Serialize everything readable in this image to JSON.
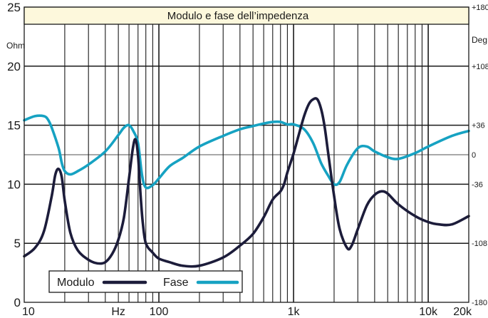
{
  "chart_data": {
    "type": "line",
    "title": "Modulo e fase dell’impedenza",
    "x_scale": "log",
    "xlim": [
      10,
      20000
    ],
    "x_ticks": [
      {
        "value": 10,
        "label": "10"
      },
      {
        "value": 50,
        "label": "Hz"
      },
      {
        "value": 100,
        "label": "100"
      },
      {
        "value": 1000,
        "label": "1k"
      },
      {
        "value": 10000,
        "label": "10k"
      },
      {
        "value": 20000,
        "label": "20k"
      }
    ],
    "left_axis": {
      "unit": "Ohm",
      "ylim": [
        0,
        25
      ],
      "ticks": [
        {
          "value": 0,
          "label": "0"
        },
        {
          "value": 5,
          "label": "5"
        },
        {
          "value": 10,
          "label": "10"
        },
        {
          "value": 15,
          "label": "15"
        },
        {
          "value": 20,
          "label": "20"
        },
        {
          "value": 25,
          "label": "25"
        }
      ]
    },
    "right_axis": {
      "unit": "Deg",
      "ylim": [
        -180,
        180
      ],
      "ticks": [
        {
          "value": 180,
          "label": "+180"
        },
        {
          "value": 108,
          "label": "+108"
        },
        {
          "value": 36,
          "label": "+36"
        },
        {
          "value": 0,
          "label": "0"
        },
        {
          "value": -36,
          "label": "-36"
        },
        {
          "value": -108,
          "label": "-108"
        },
        {
          "value": -180,
          "label": "-180"
        }
      ]
    },
    "grid": true,
    "legend": {
      "placement": "bottom-left",
      "entries": [
        {
          "name": "Modulo",
          "color": "#1c1c3a"
        },
        {
          "name": "Fase",
          "color": "#16a2c2"
        }
      ]
    },
    "series": [
      {
        "name": "Modulo",
        "axis": "left",
        "color": "#1c1c3a",
        "x": [
          10,
          12,
          14,
          16,
          17,
          18,
          19,
          20,
          22,
          25,
          30,
          35,
          40,
          45,
          50,
          55,
          60,
          64,
          67,
          70,
          73,
          76,
          80,
          90,
          100,
          120,
          150,
          200,
          300,
          400,
          500,
          600,
          700,
          800,
          850,
          900,
          1000,
          1100,
          1200,
          1300,
          1400,
          1500,
          1600,
          1700,
          1800,
          2000,
          2200,
          2500,
          2700,
          3000,
          3500,
          4000,
          4500,
          5000,
          6000,
          8000,
          10000,
          12000,
          15000,
          20000
        ],
        "y": [
          3.9,
          4.6,
          6.0,
          9.0,
          10.8,
          11.3,
          10.6,
          8.6,
          5.9,
          4.4,
          3.6,
          3.3,
          3.4,
          4.1,
          5.3,
          7.2,
          10.5,
          13.0,
          13.8,
          12.4,
          9.2,
          6.7,
          5.0,
          4.2,
          3.7,
          3.4,
          3.1,
          3.1,
          3.8,
          4.8,
          5.8,
          7.2,
          8.7,
          9.4,
          10.0,
          11.0,
          12.6,
          14.3,
          15.8,
          16.8,
          17.2,
          17.2,
          16.4,
          14.9,
          12.8,
          9.0,
          6.2,
          4.6,
          4.8,
          6.2,
          8.2,
          9.1,
          9.4,
          9.2,
          8.3,
          7.3,
          6.8,
          6.6,
          6.6,
          7.3
        ]
      },
      {
        "name": "Fase",
        "axis": "right",
        "color": "#16a2c2",
        "x": [
          10,
          12,
          14,
          15,
          16,
          18,
          19,
          20,
          22,
          25,
          30,
          40,
          50,
          55,
          60,
          65,
          70,
          75,
          80,
          90,
          100,
          120,
          150,
          200,
          300,
          400,
          500,
          600,
          700,
          800,
          900,
          1000,
          1200,
          1400,
          1600,
          1800,
          2000,
          2200,
          2500,
          3000,
          3500,
          4000,
          5000,
          6000,
          8000,
          10000,
          15000,
          20000
        ],
        "y": [
          42,
          47,
          47,
          43,
          33,
          8,
          -10,
          -20,
          -24,
          -20,
          -12,
          4,
          24,
          33,
          36,
          28,
          14,
          -25,
          -40,
          -37,
          -29,
          -14,
          -4,
          10,
          23,
          31,
          35,
          38,
          40,
          40,
          37,
          37,
          31,
          14,
          -10,
          -25,
          -36,
          -33,
          -12,
          8,
          10,
          4,
          -3,
          -5,
          2,
          10,
          23,
          29
        ]
      }
    ]
  }
}
